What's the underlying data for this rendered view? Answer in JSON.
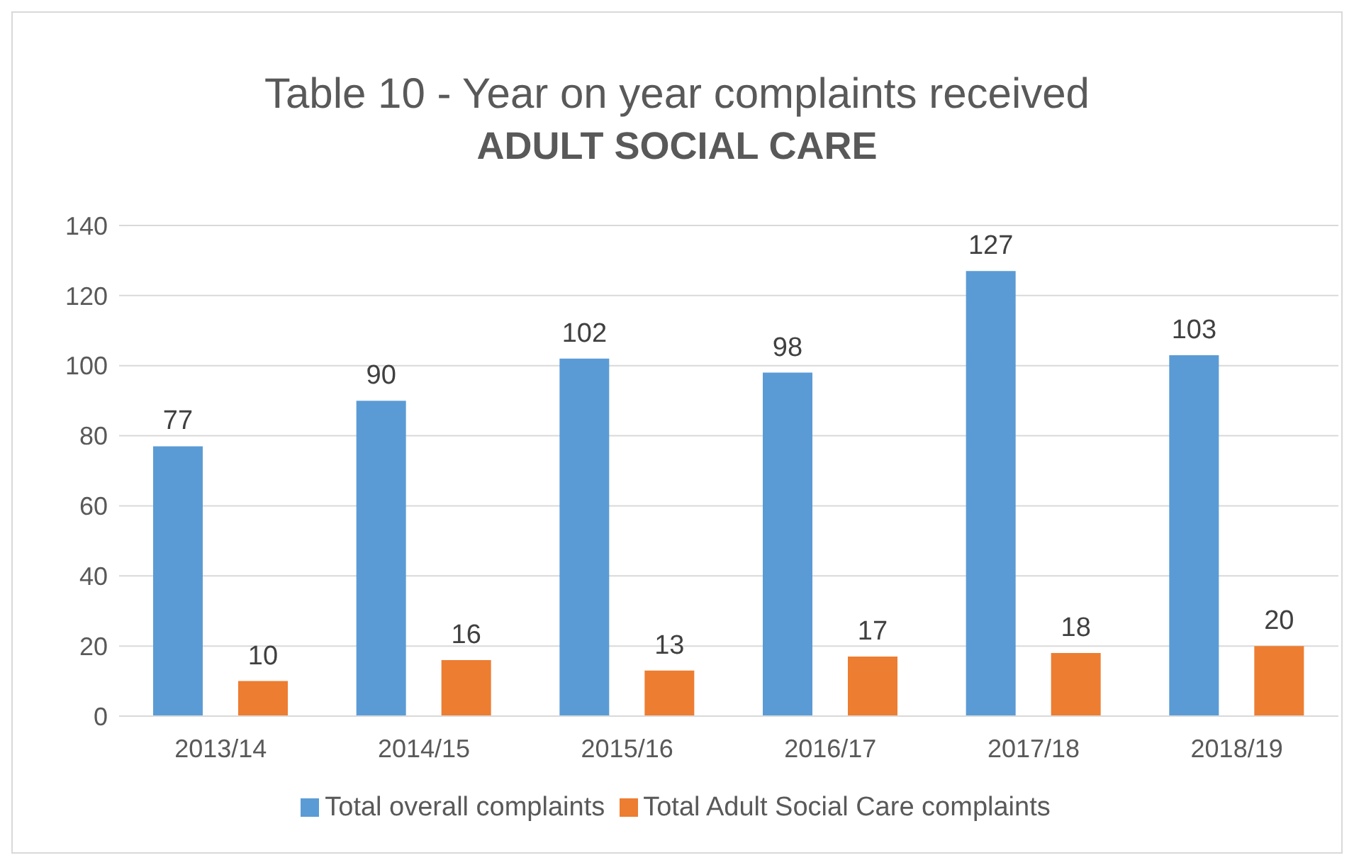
{
  "chart_data": {
    "type": "bar",
    "title": "Table 10 - Year on year complaints received",
    "subtitle": "ADULT SOCIAL CARE",
    "categories": [
      "2013/14",
      "2014/15",
      "2015/16",
      "2016/17",
      "2017/18",
      "2018/19"
    ],
    "series": [
      {
        "name": "Total overall complaints",
        "color": "#5b9bd5",
        "values": [
          77,
          90,
          102,
          98,
          127,
          103
        ]
      },
      {
        "name": "Total Adult Social Care complaints",
        "color": "#ed7d31",
        "values": [
          10,
          16,
          13,
          17,
          18,
          20
        ]
      }
    ],
    "ylim": [
      0,
      140
    ],
    "yticks": [
      0,
      20,
      40,
      60,
      80,
      100,
      120,
      140
    ],
    "grid": "y",
    "legend": "bottom",
    "data_labels": true
  }
}
